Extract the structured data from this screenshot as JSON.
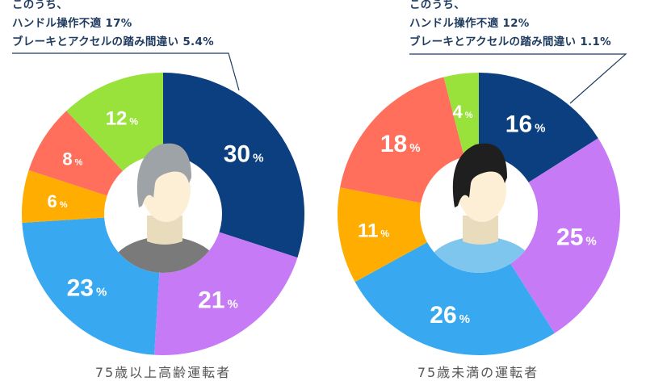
{
  "chart_data": [
    {
      "type": "pie",
      "title": "75歳以上高齢運転者",
      "unit": "%",
      "values": [
        30,
        21,
        23,
        6,
        8,
        12
      ],
      "colors": [
        "#0b3f80",
        "#c77af5",
        "#38a9f1",
        "#ffad00",
        "#ff6f5b",
        "#99e23c"
      ],
      "annotation": {
        "line1": "このうち、",
        "line2": "ハンドル操作不適 17%",
        "line3": "ブレーキとアクセルの踏み間違い 5.4%"
      },
      "avatar": {
        "hair": "#9ea3a8",
        "shirt": "#7a7a7a"
      }
    },
    {
      "type": "pie",
      "title": "75歳未満の運転者",
      "unit": "%",
      "values": [
        16,
        25,
        26,
        11,
        18,
        4
      ],
      "colors": [
        "#0b3f80",
        "#c77af5",
        "#38a9f1",
        "#ffad00",
        "#ff6f5b",
        "#99e23c"
      ],
      "annotation": {
        "line1": "このうち、",
        "line2": "ハンドル操作不適 12%",
        "line3": "ブレーキとアクセルの踏み間違い 1.1%"
      },
      "avatar": {
        "hair": "#1f1f1f",
        "shirt": "#7fc6ef"
      }
    }
  ]
}
